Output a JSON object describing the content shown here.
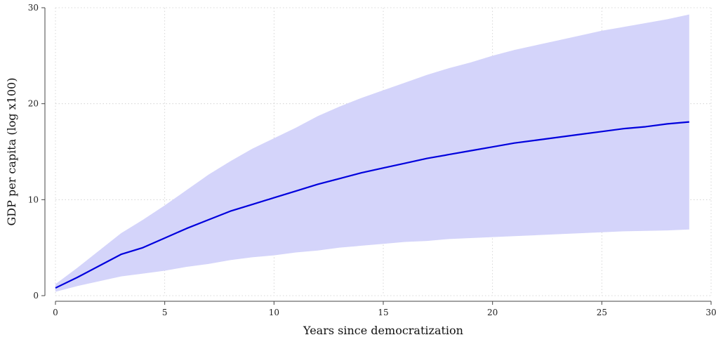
{
  "chart_data": {
    "type": "area",
    "title": "",
    "xlabel": "Years since democratization",
    "ylabel": "GDP per capita (log x100)",
    "xlim": [
      0,
      30
    ],
    "ylim": [
      0,
      30
    ],
    "x_ticks": [
      0,
      5,
      10,
      15,
      20,
      25,
      30
    ],
    "y_ticks": [
      0,
      10,
      20,
      30
    ],
    "grid": true,
    "legend": "none",
    "colors": {
      "line": "#0000dd",
      "band": "#d4d4fa",
      "grid": "#cccccc"
    },
    "x": [
      0,
      1,
      2,
      3,
      4,
      5,
      6,
      7,
      8,
      9,
      10,
      11,
      12,
      13,
      14,
      15,
      16,
      17,
      18,
      19,
      20,
      21,
      22,
      23,
      24,
      25,
      26,
      27,
      28,
      29
    ],
    "series": [
      {
        "type": "line",
        "values": [
          0.8,
          1.9,
          3.1,
          4.3,
          5.0,
          6.0,
          7.0,
          7.9,
          8.8,
          9.5,
          10.2,
          10.9,
          11.6,
          12.2,
          12.8,
          13.3,
          13.8,
          14.3,
          14.7,
          15.1,
          15.5,
          15.9,
          16.2,
          16.5,
          16.8,
          17.1,
          17.4,
          17.6,
          17.9,
          18.1
        ]
      },
      {
        "type": "band",
        "lower": [
          0.4,
          1.0,
          1.5,
          2.0,
          2.3,
          2.6,
          3.0,
          3.3,
          3.7,
          4.0,
          4.2,
          4.5,
          4.7,
          5.0,
          5.2,
          5.4,
          5.6,
          5.7,
          5.9,
          6.0,
          6.1,
          6.2,
          6.3,
          6.4,
          6.5,
          6.6,
          6.7,
          6.75,
          6.8,
          6.9
        ],
        "upper": [
          1.2,
          2.9,
          4.7,
          6.5,
          7.9,
          9.4,
          11.0,
          12.6,
          14.0,
          15.3,
          16.4,
          17.5,
          18.7,
          19.7,
          20.6,
          21.4,
          22.2,
          23.0,
          23.7,
          24.3,
          25.0,
          25.6,
          26.1,
          26.6,
          27.1,
          27.6,
          28.0,
          28.4,
          28.8,
          29.3
        ]
      }
    ]
  }
}
